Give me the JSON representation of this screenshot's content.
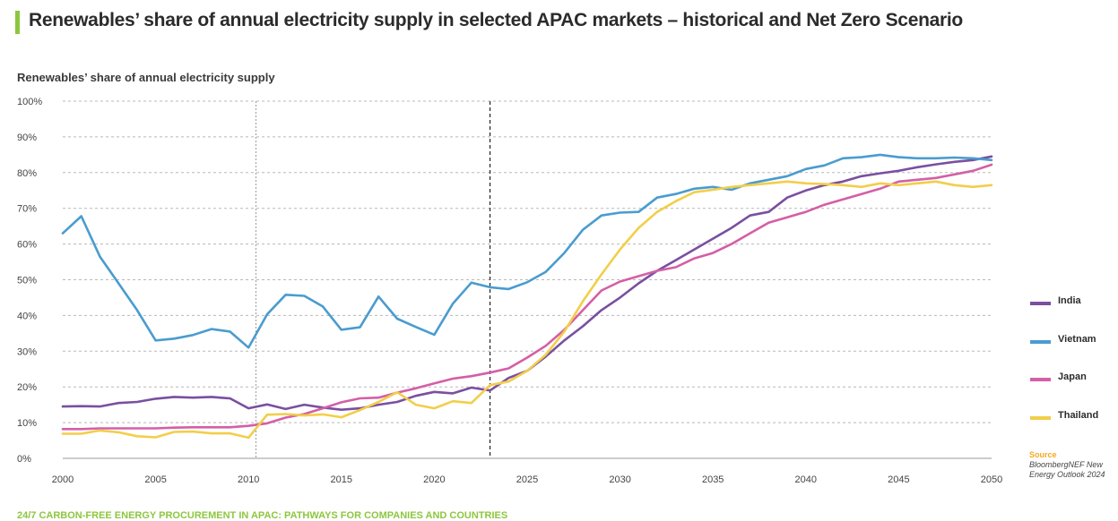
{
  "title": "Renewables’ share of annual electricity supply in selected APAC markets – historical and Net Zero Scenario",
  "footer": "24/7 CARBON-FREE ENERGY PROCUREMENT IN APAC: PATHWAYS FOR COMPANIES AND COUNTRIES",
  "source": {
    "heading": "Source",
    "text": "BloombergNEF New Energy Outlook 2024"
  },
  "colors": {
    "India": "#7a4fa0",
    "Vietnam": "#4a9ccf",
    "Japan": "#d45fa6",
    "Thailand": "#f2ce4a",
    "accent": "#8dc63f",
    "grid": "#b8b8b8"
  },
  "chart_data": {
    "type": "line",
    "title": "Renewables’ share of annual electricity supply in selected APAC markets – historical and Net Zero Scenario",
    "ylabel": "Renewables’ share of annual electricity supply",
    "xlabel": "",
    "xlim": [
      2000,
      2050
    ],
    "ylim": [
      0,
      100
    ],
    "x_ticks": [
      "2000",
      "2005",
      "2010",
      "2015",
      "2020",
      "2025",
      "2030",
      "2035",
      "2040",
      "2045",
      "2050"
    ],
    "y_ticks": [
      "0%",
      "10%",
      "20%",
      "30%",
      "40%",
      "50%",
      "60%",
      "70%",
      "80%",
      "90%",
      "100%"
    ],
    "reference_lines": [
      {
        "x": 2010.4,
        "style": "dotted"
      },
      {
        "x": 2023,
        "style": "dashed"
      }
    ],
    "x": [
      2000,
      2001,
      2002,
      2003,
      2004,
      2005,
      2006,
      2007,
      2008,
      2009,
      2010,
      2011,
      2012,
      2013,
      2014,
      2015,
      2016,
      2017,
      2018,
      2019,
      2020,
      2021,
      2022,
      2023,
      2024,
      2025,
      2026,
      2027,
      2028,
      2029,
      2030,
      2031,
      2032,
      2033,
      2034,
      2035,
      2036,
      2037,
      2038,
      2039,
      2040,
      2041,
      2042,
      2043,
      2044,
      2045,
      2046,
      2047,
      2048,
      2049,
      2050
    ],
    "series": [
      {
        "name": "India",
        "values": [
          14.5,
          14.6,
          14.5,
          15.5,
          15.8,
          16.7,
          17.2,
          17.0,
          17.2,
          16.8,
          14.0,
          15.1,
          13.8,
          15.0,
          14.2,
          13.6,
          14.0,
          15.0,
          15.8,
          17.5,
          18.6,
          18.2,
          19.8,
          19.0,
          22.5,
          24.5,
          28.5,
          33.0,
          37.0,
          41.5,
          45.0,
          49.0,
          52.5,
          55.5,
          58.5,
          61.5,
          64.5,
          68.0,
          69.0,
          73.0,
          75.0,
          76.5,
          77.5,
          79.0,
          79.8,
          80.5,
          81.5,
          82.3,
          83.0,
          83.5,
          84.5
        ]
      },
      {
        "name": "Vietnam",
        "values": [
          63,
          67.8,
          56.5,
          49,
          41.5,
          33,
          33.5,
          34.5,
          36.2,
          35.5,
          31,
          40.3,
          45.8,
          45.5,
          42.5,
          36,
          36.7,
          45.3,
          39.1,
          36.8,
          34.6,
          43.3,
          49.2,
          47.9,
          47.4,
          49.3,
          52.2,
          57.5,
          64,
          68,
          68.8,
          69,
          73,
          74,
          75.5,
          76,
          75.2,
          77,
          78,
          79,
          81,
          82,
          84,
          84.3,
          85,
          84.3,
          84,
          84,
          84.2,
          84,
          83.5
        ]
      },
      {
        "name": "Japan",
        "values": [
          8.2,
          8.2,
          8.4,
          8.4,
          8.4,
          8.4,
          8.6,
          8.7,
          8.7,
          8.7,
          9.1,
          9.8,
          11.4,
          12.4,
          14.0,
          15.7,
          16.8,
          17.0,
          18.4,
          19.6,
          21.0,
          22.3,
          23.0,
          24.0,
          25.2,
          28.2,
          31.5,
          36.0,
          41.5,
          47.0,
          49.5,
          51.0,
          52.5,
          53.5,
          56.0,
          57.5,
          60.0,
          63.0,
          66.0,
          67.5,
          69.0,
          71.0,
          72.5,
          74.0,
          75.5,
          77.5,
          78.0,
          78.5,
          79.5,
          80.5,
          82.2
        ]
      },
      {
        "name": "Thailand",
        "values": [
          6.9,
          6.9,
          7.8,
          7.3,
          6.2,
          5.9,
          7.4,
          7.5,
          7.0,
          7.0,
          5.8,
          12.2,
          12.4,
          12.0,
          12.3,
          11.5,
          13.5,
          15.8,
          18.5,
          15.0,
          14.0,
          16.0,
          15.5,
          20.5,
          21.5,
          24.5,
          29.0,
          35.5,
          44.0,
          51.5,
          58.5,
          64.5,
          69.0,
          72.0,
          74.5,
          75.2,
          76.0,
          76.5,
          77.0,
          77.5,
          77.0,
          76.8,
          76.5,
          76.0,
          77.0,
          76.5,
          77.0,
          77.5,
          76.5,
          76.0,
          76.5
        ]
      }
    ],
    "legend": [
      "India",
      "Vietnam",
      "Japan",
      "Thailand"
    ],
    "legend_position": "right"
  }
}
